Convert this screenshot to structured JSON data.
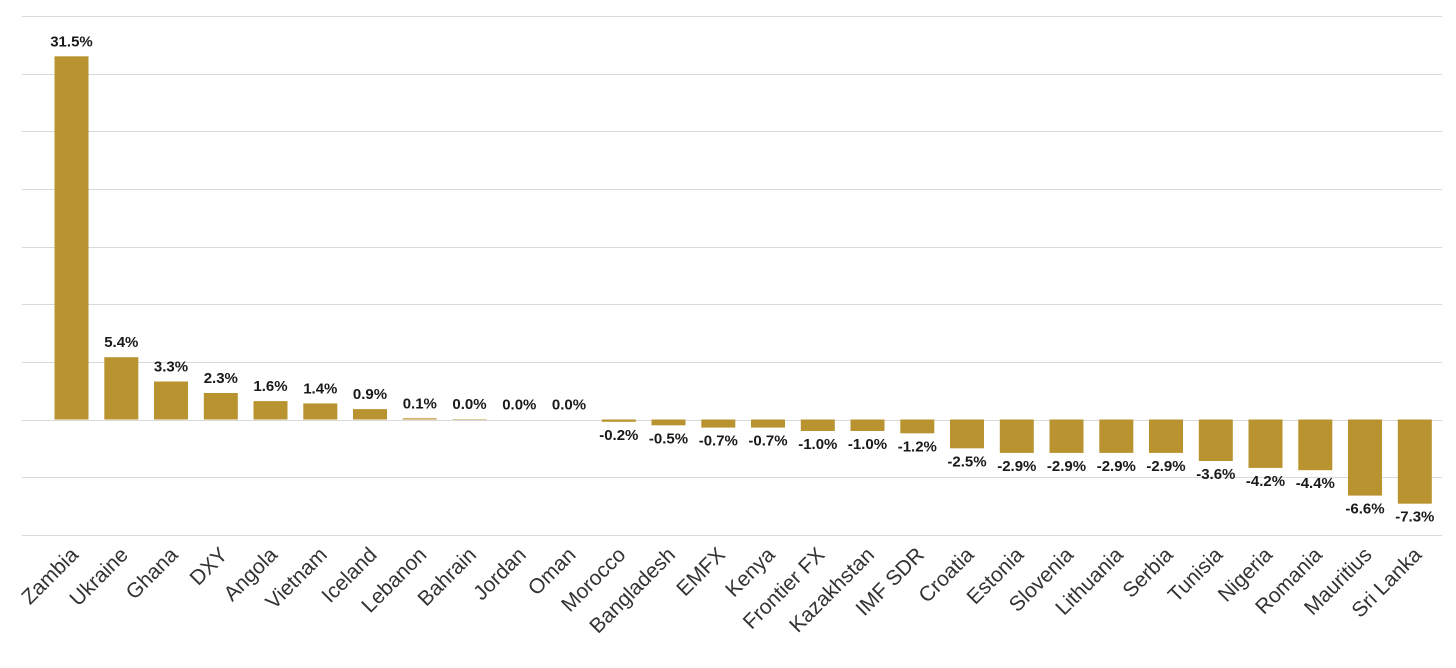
{
  "chart_data": {
    "type": "bar",
    "title": "",
    "xlabel": "",
    "ylabel": "",
    "ylim": [
      -10,
      35
    ],
    "grid": true,
    "legend": "none",
    "bar_color": "#b89330",
    "categories": [
      "Zambia",
      "Ukraine",
      "Ghana",
      "DXY",
      "Angola",
      "Vietnam",
      "Iceland",
      "Lebanon",
      "Bahrain",
      "Jordan",
      "Oman",
      "Morocco",
      "Bangladesh",
      "EMFX",
      "Kenya",
      "Frontier FX",
      "Kazakhstan",
      "IMF SDR",
      "Croatia",
      "Estonia",
      "Slovenia",
      "Lithuania",
      "Serbia",
      "Tunisia",
      "Nigeria",
      "Romania",
      "Mauritius",
      "Sri Lanka"
    ],
    "values": [
      31.5,
      5.4,
      3.3,
      2.3,
      1.6,
      1.4,
      0.9,
      0.1,
      0.04,
      0.0,
      0.0,
      -0.2,
      -0.5,
      -0.7,
      -0.7,
      -1.0,
      -1.0,
      -1.2,
      -2.5,
      -2.9,
      -2.9,
      -2.9,
      -2.9,
      -3.6,
      -4.2,
      -4.4,
      -6.6,
      -7.3
    ],
    "data_labels": [
      "31.5%",
      "5.4%",
      "3.3%",
      "2.3%",
      "1.6%",
      "1.4%",
      "0.9%",
      "0.1%",
      "0.0%",
      "0.0%",
      "0.0%",
      "-0.2%",
      "-0.5%",
      "-0.7%",
      "-0.7%",
      "-1.0%",
      "-1.0%",
      "-1.2%",
      "-2.5%",
      "-2.9%",
      "-2.9%",
      "-2.9%",
      "-2.9%",
      "-3.6%",
      "-4.2%",
      "-4.4%",
      "-6.6%",
      "-7.3%"
    ]
  }
}
